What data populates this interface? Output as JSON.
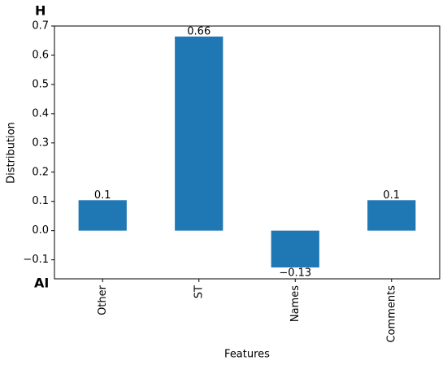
{
  "chart_data": {
    "type": "bar",
    "annotations": [
      "H",
      "AI"
    ],
    "xlabel": "Features",
    "ylabel": "Distribution",
    "categories": [
      "Other",
      "ST",
      "Names",
      "Comments"
    ],
    "values": [
      0.104,
      0.664,
      -0.126,
      0.104
    ],
    "value_labels": [
      "0.1",
      "0.66",
      "−0.13",
      "0.1"
    ],
    "color": "#1f77b4",
    "ylim": [
      -0.165,
      0.7
    ],
    "yticks": [
      {
        "value": -0.1,
        "label": "−0.1"
      },
      {
        "value": 0,
        "label": "0.0"
      },
      0.1,
      0.2,
      0.3,
      0.4,
      0.5,
      0.6,
      0.7
    ]
  }
}
